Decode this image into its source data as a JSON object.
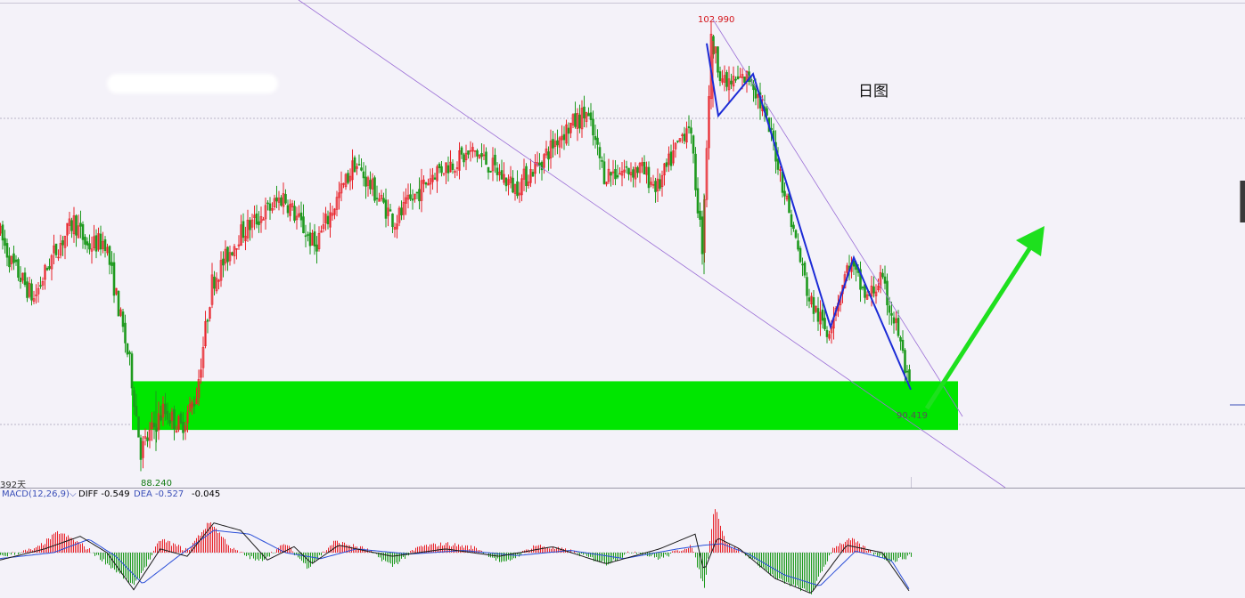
{
  "window": {
    "chart_title": "日图"
  },
  "indicator": {
    "macd_label": "MACD(12,26,9)",
    "diff_label": "DIFF -0.549",
    "dea_label": "DEA -0.527",
    "macd_value": "-0.045",
    "days_label": "392天"
  },
  "colors": {
    "up": "#e8242b",
    "down": "#1e9a1e",
    "trendline": "#9b6fd6",
    "wave": "#1c2bd6",
    "support_zone": "#00e600",
    "arrow": "#1ee01e",
    "diff_line": "#1a1a1a",
    "dea_line": "#2b4fd8"
  },
  "chart_data": {
    "type": "candlestick",
    "title": "日图",
    "highest_label": "102.990",
    "lowest_label": "88.240",
    "last_label": "90.419",
    "highest": 102.99,
    "lowest": 88.24,
    "last": 90.419,
    "ylim": [
      87.5,
      103.5
    ],
    "path": [
      [
        0,
        96.2
      ],
      [
        15,
        95.0
      ],
      [
        40,
        93.7
      ],
      [
        60,
        95.2
      ],
      [
        85,
        96.5
      ],
      [
        100,
        95.6
      ],
      [
        120,
        95.8
      ],
      [
        148,
        91.3
      ],
      [
        160,
        88.24
      ],
      [
        185,
        89.7
      ],
      [
        205,
        89.1
      ],
      [
        222,
        90.2
      ],
      [
        240,
        94.3
      ],
      [
        270,
        96.0
      ],
      [
        320,
        97.4
      ],
      [
        355,
        95.6
      ],
      [
        400,
        98.6
      ],
      [
        445,
        96.5
      ],
      [
        490,
        98.3
      ],
      [
        535,
        99.0
      ],
      [
        580,
        97.7
      ],
      [
        610,
        98.7
      ],
      [
        630,
        99.6
      ],
      [
        660,
        100.4
      ],
      [
        680,
        98.2
      ],
      [
        720,
        98.4
      ],
      [
        740,
        97.7
      ],
      [
        775,
        100.1
      ],
      [
        790,
        95.6
      ],
      [
        800,
        102.99
      ],
      [
        815,
        101.4
      ],
      [
        845,
        101.7
      ],
      [
        870,
        99.3
      ],
      [
        910,
        93.7
      ],
      [
        930,
        92.5
      ],
      [
        955,
        95.0
      ],
      [
        975,
        93.7
      ],
      [
        990,
        94.4
      ],
      [
        1010,
        92.5
      ],
      [
        1022,
        90.42
      ]
    ],
    "wave_points": [
      [
        793,
        102.9
      ],
      [
        806,
        100.3
      ],
      [
        845,
        101.8
      ],
      [
        932,
        92.7
      ],
      [
        958,
        95.2
      ],
      [
        1022,
        90.45
      ]
    ],
    "support_zone": [
      89.0,
      90.75
    ],
    "series": [
      {
        "name": "DIFF"
      },
      {
        "name": "DEA"
      }
    ],
    "macd": {
      "bar_scale": [
        -0.6,
        0.6
      ],
      "histogram_key": [
        [
          0,
          -0.05
        ],
        [
          40,
          0.05
        ],
        [
          65,
          0.28
        ],
        [
          90,
          0.12
        ],
        [
          115,
          -0.1
        ],
        [
          150,
          -0.45
        ],
        [
          180,
          0.18
        ],
        [
          210,
          0.03
        ],
        [
          235,
          0.42
        ],
        [
          260,
          0.05
        ],
        [
          290,
          -0.12
        ],
        [
          320,
          0.12
        ],
        [
          345,
          -0.2
        ],
        [
          375,
          0.15
        ],
        [
          410,
          0.05
        ],
        [
          440,
          -0.18
        ],
        [
          470,
          0.08
        ],
        [
          500,
          0.12
        ],
        [
          535,
          0.06
        ],
        [
          565,
          -0.15
        ],
        [
          600,
          0.1
        ],
        [
          640,
          0.02
        ],
        [
          680,
          -0.15
        ],
        [
          710,
          0.02
        ],
        [
          740,
          -0.08
        ],
        [
          775,
          0.1
        ],
        [
          790,
          -0.48
        ],
        [
          801,
          0.65
        ],
        [
          815,
          0.12
        ],
        [
          840,
          -0.05
        ],
        [
          870,
          -0.35
        ],
        [
          910,
          -0.55
        ],
        [
          935,
          0.08
        ],
        [
          955,
          0.18
        ],
        [
          975,
          0.02
        ],
        [
          1000,
          -0.12
        ],
        [
          1022,
          -0.04
        ]
      ],
      "diff_key": [
        [
          0,
          -0.1
        ],
        [
          50,
          0.05
        ],
        [
          90,
          0.22
        ],
        [
          120,
          0.0
        ],
        [
          150,
          -0.5
        ],
        [
          180,
          0.05
        ],
        [
          210,
          -0.05
        ],
        [
          240,
          0.4
        ],
        [
          270,
          0.3
        ],
        [
          300,
          -0.1
        ],
        [
          330,
          0.08
        ],
        [
          350,
          -0.15
        ],
        [
          380,
          0.1
        ],
        [
          440,
          -0.05
        ],
        [
          500,
          0.05
        ],
        [
          560,
          -0.05
        ],
        [
          620,
          0.08
        ],
        [
          680,
          -0.15
        ],
        [
          740,
          0.05
        ],
        [
          780,
          0.25
        ],
        [
          790,
          -0.25
        ],
        [
          805,
          0.2
        ],
        [
          830,
          0.05
        ],
        [
          870,
          -0.35
        ],
        [
          910,
          -0.55
        ],
        [
          950,
          0.1
        ],
        [
          990,
          0.0
        ],
        [
          1022,
          -0.549
        ]
      ],
      "dea_key": [
        [
          0,
          -0.08
        ],
        [
          60,
          0.0
        ],
        [
          100,
          0.18
        ],
        [
          130,
          -0.05
        ],
        [
          160,
          -0.42
        ],
        [
          200,
          -0.05
        ],
        [
          240,
          0.3
        ],
        [
          280,
          0.25
        ],
        [
          320,
          0.0
        ],
        [
          360,
          -0.08
        ],
        [
          400,
          0.05
        ],
        [
          460,
          -0.02
        ],
        [
          520,
          0.03
        ],
        [
          580,
          -0.04
        ],
        [
          640,
          0.03
        ],
        [
          700,
          -0.08
        ],
        [
          760,
          0.05
        ],
        [
          790,
          0.1
        ],
        [
          810,
          0.12
        ],
        [
          840,
          -0.02
        ],
        [
          880,
          -0.3
        ],
        [
          920,
          -0.45
        ],
        [
          960,
          0.02
        ],
        [
          1000,
          -0.1
        ],
        [
          1022,
          -0.527
        ]
      ]
    }
  }
}
